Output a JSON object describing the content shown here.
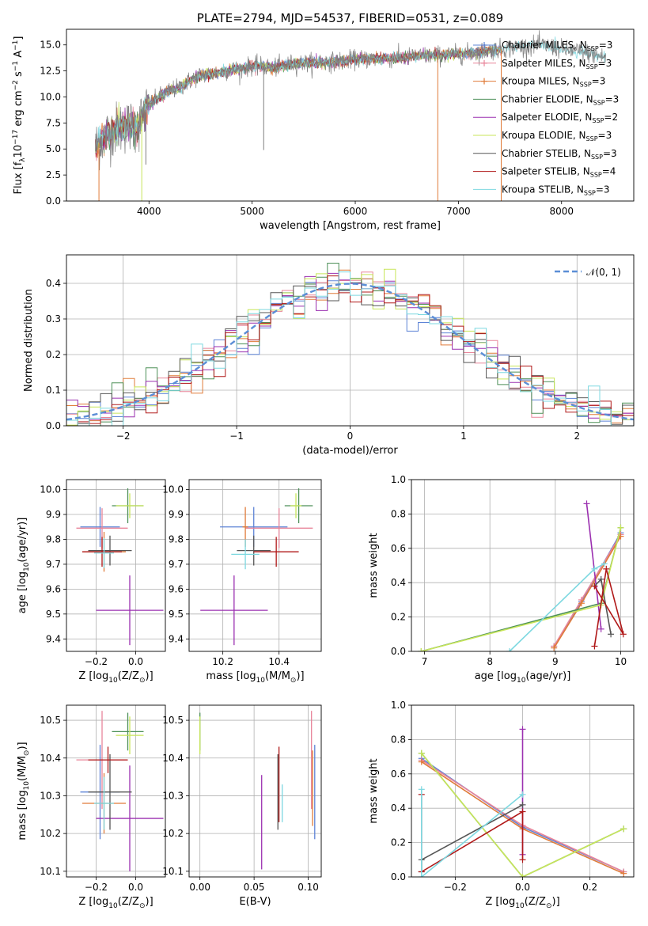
{
  "colors": {
    "Chabrier MILES": "#5e84d6",
    "Salpeter MILES": "#e8859a",
    "Kroupa MILES": "#e07b39",
    "Chabrier ELODIE": "#4c8f57",
    "Salpeter ELODIE": "#9b30b0",
    "Kroupa ELODIE": "#c8e65a",
    "Chabrier STELIB": "#555555",
    "Salpeter STELIB": "#b01818",
    "Kroupa STELIB": "#7dd8e0",
    "grid": "#b0b0b0",
    "normal_curve": "#5b8ed6"
  },
  "chart_data": [
    {
      "id": "spectrum",
      "type": "line",
      "title": "PLATE=2794, MJD=54537, FIBERID=0531, z=0.089",
      "xlabel": "wavelength [Angstrom, rest frame]",
      "ylabel": "Flux [f",
      "ylabel_sub": "λ",
      "ylabel_rest": "10",
      "ylabel_sup": "−17",
      "ylabel_units": " erg cm",
      "ylabel_sup2": "−2",
      "ylabel_units2": " s",
      "ylabel_sup3": "−1",
      "ylabel_units3": " A",
      "ylabel_sup4": "−1",
      "ylabel_end": "]",
      "xlim": [
        3200,
        8700
      ],
      "ylim": [
        0,
        16.5
      ],
      "xticks": [
        "4000",
        "5000",
        "6000",
        "7000",
        "8000"
      ],
      "xtick_values": [
        4000,
        5000,
        6000,
        7000,
        8000
      ],
      "yticks": [
        "0.0",
        "2.5",
        "5.0",
        "7.5",
        "10.0",
        "12.5",
        "15.0"
      ],
      "ytick_values": [
        0,
        2.5,
        5,
        7.5,
        10,
        12.5,
        15
      ],
      "legend": [
        {
          "name": "Chabrier MILES, N",
          "sub": "SSP",
          "n": "=3",
          "marker": "+"
        },
        {
          "name": "Salpeter MILES, N",
          "sub": "SSP",
          "n": "=3",
          "marker": "+"
        },
        {
          "name": "Kroupa MILES, N",
          "sub": "SSP",
          "n": "=3",
          "marker": "+"
        },
        {
          "name": "Chabrier ELODIE, N",
          "sub": "SSP",
          "n": "=3",
          "marker": ""
        },
        {
          "name": "Salpeter ELODIE, N",
          "sub": "SSP",
          "n": "=2",
          "marker": ""
        },
        {
          "name": "Kroupa ELODIE, N",
          "sub": "SSP",
          "n": "=3",
          "marker": ""
        },
        {
          "name": "Chabrier STELIB, N",
          "sub": "SSP",
          "n": "=3",
          "marker": ""
        },
        {
          "name": "Salpeter STELIB, N",
          "sub": "SSP",
          "n": "=4",
          "marker": ""
        },
        {
          "name": "Kroupa STELIB, N",
          "sub": "SSP",
          "n": "=3",
          "marker": ""
        }
      ],
      "continuum": [
        [
          3480,
          5.2
        ],
        [
          3600,
          6.5
        ],
        [
          3700,
          7.0
        ],
        [
          3800,
          7.2
        ],
        [
          3900,
          7.3
        ],
        [
          3950,
          8.5
        ],
        [
          4000,
          9.2
        ],
        [
          4100,
          10.0
        ],
        [
          4200,
          10.6
        ],
        [
          4300,
          10.9
        ],
        [
          4400,
          11.6
        ],
        [
          4500,
          12.1
        ],
        [
          4600,
          12.2
        ],
        [
          4700,
          12.4
        ],
        [
          4800,
          12.6
        ],
        [
          4900,
          12.7
        ],
        [
          5000,
          13.0
        ],
        [
          5200,
          12.8
        ],
        [
          5400,
          13.2
        ],
        [
          5600,
          13.3
        ],
        [
          5800,
          13.4
        ],
        [
          6000,
          13.6
        ],
        [
          6200,
          13.7
        ],
        [
          6400,
          13.7
        ],
        [
          6600,
          13.9
        ],
        [
          6800,
          14.0
        ],
        [
          7000,
          14.1
        ],
        [
          7200,
          14.3
        ],
        [
          7400,
          14.6
        ],
        [
          7600,
          14.8
        ],
        [
          7800,
          15.0
        ],
        [
          8000,
          14.6
        ],
        [
          8200,
          14.3
        ],
        [
          8430,
          13.8
        ]
      ],
      "absorption_dips": [
        [
          3515,
          0
        ],
        [
          3930,
          0
        ],
        [
          3970,
          3.5
        ],
        [
          5112,
          4.9
        ],
        [
          6800,
          0
        ],
        [
          7415,
          0
        ]
      ]
    },
    {
      "id": "residuals",
      "type": "histogram",
      "xlabel": "(data-model)/error",
      "ylabel": "Normed distribution",
      "xlim": [
        -2.5,
        2.5
      ],
      "ylim": [
        0,
        0.48
      ],
      "xticks": [
        "−2",
        "−1",
        "0",
        "1",
        "2"
      ],
      "xtick_values": [
        -2,
        -1,
        0,
        1,
        2
      ],
      "yticks": [
        "0.0",
        "0.1",
        "0.2",
        "0.3",
        "0.4"
      ],
      "ytick_values": [
        0,
        0.1,
        0.2,
        0.3,
        0.4
      ],
      "legend": [
        {
          "name": "𝒩(0, 1)",
          "style": "dashed"
        }
      ],
      "bin_width": 0.1
    },
    {
      "id": "age_vs_Z",
      "type": "errorbar",
      "xlabel": "Z [log",
      "xlabel_sub": "10",
      "xlabel_rest": "(Z/Z",
      "xlabel_sub2": "⊙",
      "xlabel_end": ")]",
      "ylabel": "age  [log",
      "ylabel_sub": "10",
      "ylabel_rest": "(age/yr)]",
      "xlim": [
        -0.35,
        0.15
      ],
      "ylim": [
        9.35,
        10.04
      ],
      "xticks": [
        "−0.2",
        "0.0"
      ],
      "xtick_values": [
        -0.2,
        0.0
      ],
      "yticks": [
        "9.4",
        "9.5",
        "9.6",
        "9.7",
        "9.8",
        "9.9",
        "10.0"
      ],
      "ytick_values": [
        9.4,
        9.5,
        9.6,
        9.7,
        9.8,
        9.9,
        10.0
      ],
      "points": [
        {
          "model": "Chabrier MILES",
          "x": -0.18,
          "xerr": 0.1,
          "y": 9.85,
          "yerr": 0.08
        },
        {
          "model": "Salpeter MILES",
          "x": -0.17,
          "xerr": 0.13,
          "y": 9.845,
          "yerr": 0.08
        },
        {
          "model": "Kroupa MILES",
          "x": -0.16,
          "xerr": 0.11,
          "y": 9.75,
          "yerr": 0.08
        },
        {
          "model": "Chabrier ELODIE",
          "x": -0.04,
          "xerr": 0.08,
          "y": 9.935,
          "yerr": 0.07
        },
        {
          "model": "Salpeter ELODIE",
          "x": -0.03,
          "xerr": 0.17,
          "y": 9.515,
          "yerr": 0.14
        },
        {
          "model": "Kroupa ELODIE",
          "x": -0.03,
          "xerr": 0.07,
          "y": 9.935,
          "yerr": 0.05
        },
        {
          "model": "Chabrier STELIB",
          "x": -0.13,
          "xerr": 0.11,
          "y": 9.755,
          "yerr": 0.06
        },
        {
          "model": "Salpeter STELIB",
          "x": -0.17,
          "xerr": 0.1,
          "y": 9.75,
          "yerr": 0.06
        },
        {
          "model": "Kroupa STELIB",
          "x": -0.16,
          "xerr": 0.05,
          "y": 9.745,
          "yerr": 0.06
        }
      ]
    },
    {
      "id": "age_vs_mass",
      "type": "errorbar",
      "xlabel": "mass [log",
      "xlabel_sub": "10",
      "xlabel_rest": "(M/M",
      "xlabel_sub2": "⊙",
      "xlabel_end": ")]",
      "xlim": [
        10.08,
        10.55
      ],
      "ylim": [
        9.35,
        10.04
      ],
      "xticks": [
        "10.2",
        "10.4"
      ],
      "xtick_values": [
        10.2,
        10.4
      ],
      "yticks": [
        "9.4",
        "9.5",
        "9.6",
        "9.7",
        "9.8",
        "9.9",
        "10.0"
      ],
      "ytick_values": [
        9.4,
        9.5,
        9.6,
        9.7,
        9.8,
        9.9,
        10.0
      ],
      "points": [
        {
          "model": "Chabrier MILES",
          "x": 10.31,
          "xerr": 0.12,
          "y": 9.85,
          "yerr": 0.08
        },
        {
          "model": "Salpeter MILES",
          "x": 10.4,
          "xerr": 0.12,
          "y": 9.845,
          "yerr": 0.08
        },
        {
          "model": "Kroupa MILES",
          "x": 10.28,
          "xerr": 0.01,
          "y": 9.85,
          "yerr": 0.08
        },
        {
          "model": "Chabrier ELODIE",
          "x": 10.47,
          "xerr": 0.05,
          "y": 9.935,
          "yerr": 0.07
        },
        {
          "model": "Salpeter ELODIE",
          "x": 10.24,
          "xerr": 0.12,
          "y": 9.515,
          "yerr": 0.14
        },
        {
          "model": "Kroupa ELODIE",
          "x": 10.46,
          "xerr": 0.02,
          "y": 9.935,
          "yerr": 0.05
        },
        {
          "model": "Chabrier STELIB",
          "x": 10.31,
          "xerr": 0.06,
          "y": 9.755,
          "yerr": 0.06
        },
        {
          "model": "Salpeter STELIB",
          "x": 10.39,
          "xerr": 0.08,
          "y": 9.75,
          "yerr": 0.06
        },
        {
          "model": "Kroupa STELIB",
          "x": 10.28,
          "xerr": 0.05,
          "y": 9.74,
          "yerr": 0.06
        }
      ]
    },
    {
      "id": "weight_vs_age",
      "type": "line",
      "xlabel": "age  [log",
      "xlabel_sub": "10",
      "xlabel_rest": "(age/yr)]",
      "ylabel": "mass weight",
      "xlim": [
        6.8,
        10.2
      ],
      "ylim": [
        0,
        1
      ],
      "xticks": [
        "7",
        "8",
        "9",
        "10"
      ],
      "xtick_values": [
        7,
        8,
        9,
        10
      ],
      "yticks": [
        "0.0",
        "0.2",
        "0.4",
        "0.6",
        "0.8",
        "1.0"
      ],
      "ytick_values": [
        0,
        0.2,
        0.4,
        0.6,
        0.8,
        1.0
      ],
      "series": [
        {
          "model": "Chabrier MILES",
          "x": [
            8.98,
            9.4,
            10.0
          ],
          "y": [
            0.03,
            0.29,
            0.69
          ]
        },
        {
          "model": "Salpeter MILES",
          "x": [
            8.98,
            9.4,
            10.0
          ],
          "y": [
            0.03,
            0.3,
            0.68
          ]
        },
        {
          "model": "Kroupa MILES",
          "x": [
            8.98,
            9.4,
            10.0
          ],
          "y": [
            0.02,
            0.28,
            0.67
          ]
        },
        {
          "model": "Chabrier ELODIE",
          "x": [
            6.95,
            9.7,
            10.0
          ],
          "y": [
            0.0,
            0.28,
            0.72
          ]
        },
        {
          "model": "Salpeter ELODIE",
          "x": [
            9.48,
            9.7
          ],
          "y": [
            0.86,
            0.13
          ]
        },
        {
          "model": "Kroupa ELODIE",
          "x": [
            6.95,
            9.7,
            10.0
          ],
          "y": [
            0.0,
            0.27,
            0.72
          ]
        },
        {
          "model": "Chabrier STELIB",
          "x": [
            9.6,
            9.7,
            9.85
          ],
          "y": [
            0.38,
            0.42,
            0.1
          ]
        },
        {
          "model": "Salpeter STELIB",
          "x": [
            9.6,
            9.78,
            10.04,
            9.6
          ],
          "y": [
            0.03,
            0.48,
            0.1,
            0.38
          ]
        },
        {
          "model": "Kroupa STELIB",
          "x": [
            8.3,
            9.6,
            9.75
          ],
          "y": [
            0.0,
            0.48,
            0.51
          ]
        }
      ]
    },
    {
      "id": "mass_vs_Z",
      "type": "errorbar",
      "xlabel": "Z [log",
      "xlabel_sub": "10",
      "xlabel_rest": "(Z/Z",
      "xlabel_sub2": "⊙",
      "xlabel_end": ")]",
      "ylabel": "mass [log",
      "ylabel_sub": "10",
      "ylabel_rest": "(M/M",
      "ylabel_sub2": "⊙",
      "ylabel_end": ")]",
      "xlim": [
        -0.35,
        0.15
      ],
      "ylim": [
        10.085,
        10.54
      ],
      "xticks": [
        "−0.2",
        "0.0"
      ],
      "xtick_values": [
        -0.2,
        0.0
      ],
      "yticks": [
        "10.1",
        "10.2",
        "10.3",
        "10.4",
        "10.5"
      ],
      "ytick_values": [
        10.1,
        10.2,
        10.3,
        10.4,
        10.5
      ],
      "points": [
        {
          "model": "Chabrier MILES",
          "x": -0.18,
          "xerr": 0.1,
          "y": 10.31,
          "yerr": 0.125
        },
        {
          "model": "Salpeter MILES",
          "x": -0.17,
          "xerr": 0.13,
          "y": 10.395,
          "yerr": 0.13
        },
        {
          "model": "Kroupa MILES",
          "x": -0.16,
          "xerr": 0.11,
          "y": 10.28,
          "yerr": 0.08
        },
        {
          "model": "Chabrier ELODIE",
          "x": -0.04,
          "xerr": 0.08,
          "y": 10.47,
          "yerr": 0.05
        },
        {
          "model": "Salpeter ELODIE",
          "x": -0.03,
          "xerr": 0.17,
          "y": 10.24,
          "yerr": 0.14
        },
        {
          "model": "Kroupa ELODIE",
          "x": -0.03,
          "xerr": 0.07,
          "y": 10.46,
          "yerr": 0.05
        },
        {
          "model": "Chabrier STELIB",
          "x": -0.13,
          "xerr": 0.11,
          "y": 10.31,
          "yerr": 0.1
        },
        {
          "model": "Salpeter STELIB",
          "x": -0.14,
          "xerr": 0.1,
          "y": 10.395,
          "yerr": 0.035
        },
        {
          "model": "Kroupa STELIB",
          "x": -0.16,
          "xerr": 0.05,
          "y": 10.28,
          "yerr": 0.07
        }
      ]
    },
    {
      "id": "mass_vs_ebv",
      "type": "errorbar",
      "xlabel": "E(B-V)",
      "xlim": [
        -0.01,
        0.112
      ],
      "ylim": [
        10.085,
        10.54
      ],
      "xticks": [
        "0.00",
        "0.05",
        "0.10"
      ],
      "xtick_values": [
        0.0,
        0.05,
        0.1
      ],
      "yticks": [
        "10.1",
        "10.2",
        "10.3",
        "10.4",
        "10.5"
      ],
      "ytick_values": [
        10.1,
        10.2,
        10.3,
        10.4,
        10.5
      ],
      "points": [
        {
          "model": "Chabrier MILES",
          "x": 0.106,
          "xerr": 0,
          "y": 10.31,
          "yerr": 0.125
        },
        {
          "model": "Salpeter MILES",
          "x": 0.103,
          "xerr": 0,
          "y": 10.395,
          "yerr": 0.13
        },
        {
          "model": "Kroupa MILES",
          "x": 0.104,
          "xerr": 0,
          "y": 10.32,
          "yerr": 0.1
        },
        {
          "model": "Chabrier ELODIE",
          "x": 0.0,
          "xerr": 0,
          "y": 10.47,
          "yerr": 0.05
        },
        {
          "model": "Salpeter ELODIE",
          "x": 0.057,
          "xerr": 0,
          "y": 10.23,
          "yerr": 0.125
        },
        {
          "model": "Kroupa ELODIE",
          "x": 0.0,
          "xerr": 0,
          "y": 10.46,
          "yerr": 0.05
        },
        {
          "model": "Chabrier STELIB",
          "x": 0.072,
          "xerr": 0,
          "y": 10.31,
          "yerr": 0.1
        },
        {
          "model": "Salpeter STELIB",
          "x": 0.073,
          "xerr": 0,
          "y": 10.33,
          "yerr": 0.1
        },
        {
          "model": "Kroupa STELIB",
          "x": 0.076,
          "xerr": 0,
          "y": 10.28,
          "yerr": 0.05
        }
      ]
    },
    {
      "id": "weight_vs_Z",
      "type": "line",
      "xlabel": "Z [log",
      "xlabel_sub": "10",
      "xlabel_rest": "(Z/Z",
      "xlabel_sub2": "⊙",
      "xlabel_end": ")]",
      "ylabel": "mass weight",
      "xlim": [
        -0.33,
        0.33
      ],
      "ylim": [
        0,
        1
      ],
      "xticks": [
        "−0.2",
        "0.0",
        "0.2"
      ],
      "xtick_values": [
        -0.2,
        0.0,
        0.2
      ],
      "yticks": [
        "0.0",
        "0.2",
        "0.4",
        "0.6",
        "0.8",
        "1.0"
      ],
      "ytick_values": [
        0,
        0.2,
        0.4,
        0.6,
        0.8,
        1.0
      ],
      "series": [
        {
          "model": "Chabrier MILES",
          "x": [
            -0.3,
            0.0,
            0.3
          ],
          "y": [
            0.69,
            0.29,
            0.03
          ]
        },
        {
          "model": "Salpeter MILES",
          "x": [
            -0.3,
            0.0,
            0.3
          ],
          "y": [
            0.68,
            0.3,
            0.03
          ]
        },
        {
          "model": "Kroupa MILES",
          "x": [
            -0.3,
            0.0,
            0.3
          ],
          "y": [
            0.67,
            0.28,
            0.02
          ]
        },
        {
          "model": "Chabrier ELODIE",
          "x": [
            -0.3,
            0.0,
            0.3
          ],
          "y": [
            0.72,
            0.0,
            0.28
          ]
        },
        {
          "model": "Salpeter ELODIE",
          "x": [
            0.0,
            0.0
          ],
          "y": [
            0.86,
            0.13
          ]
        },
        {
          "model": "Kroupa ELODIE",
          "x": [
            -0.3,
            0.0,
            0.3
          ],
          "y": [
            0.72,
            0.0,
            0.28
          ]
        },
        {
          "model": "Chabrier STELIB",
          "x": [
            -0.3,
            -0.3,
            0.0
          ],
          "y": [
            0.03,
            0.1,
            0.42
          ]
        },
        {
          "model": "Salpeter STELIB",
          "x": [
            -0.3,
            -0.3,
            0.0,
            0.0
          ],
          "y": [
            0.48,
            0.03,
            0.38,
            0.1
          ]
        },
        {
          "model": "Kroupa STELIB",
          "x": [
            -0.3,
            -0.3,
            0.0
          ],
          "y": [
            0.51,
            0.0,
            0.48
          ]
        }
      ]
    }
  ]
}
